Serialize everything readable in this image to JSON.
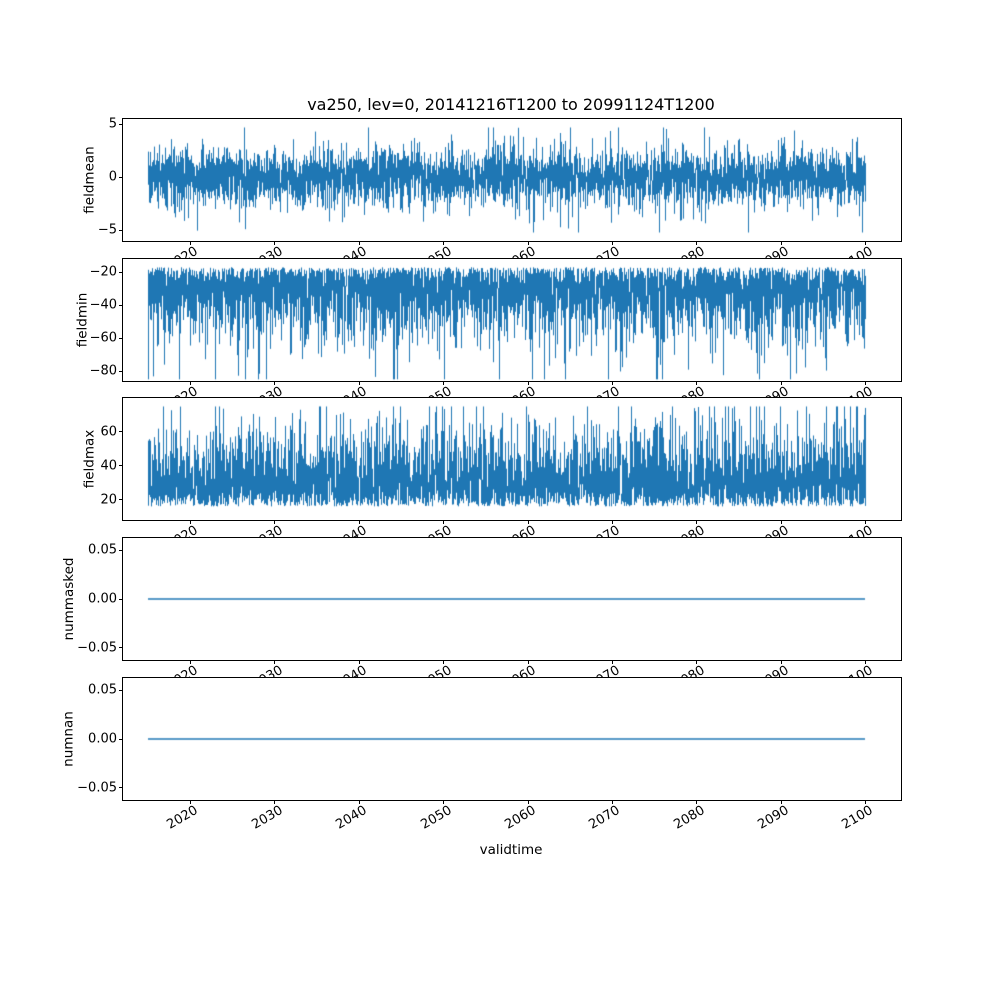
{
  "figure": {
    "title": "va250, lev=0, 20141216T1200 to 20991124T1200",
    "xlabel": "validtime",
    "background": "#ffffff",
    "line_color": "#1f77b4",
    "x_axis": {
      "xlim": [
        2012.0,
        2104.2
      ],
      "data_range": [
        2014.96,
        2099.9
      ],
      "tick_values": [
        2020,
        2030,
        2040,
        2050,
        2060,
        2070,
        2080,
        2090,
        2100
      ],
      "tick_labels": [
        "2020",
        "2030",
        "2040",
        "2050",
        "2060",
        "2070",
        "2080",
        "2090",
        "2100"
      ],
      "tick_rotation_deg": 30
    }
  },
  "chart_data": [
    {
      "type": "line",
      "ylabel": "fieldmean",
      "ylim": [
        -6.0,
        5.5
      ],
      "ytick_values": [
        5,
        0,
        -5
      ],
      "ytick_labels": [
        "5",
        "0",
        "−5"
      ],
      "profile": "sym",
      "typical_range": [
        -2.6,
        2.6
      ],
      "extremes": [
        -5.2,
        4.7
      ]
    },
    {
      "type": "line",
      "ylabel": "fieldmin",
      "ylim": [
        -86.0,
        -12.0
      ],
      "ytick_values": [
        -20,
        -40,
        -60,
        -80
      ],
      "ytick_labels": [
        "−20",
        "−40",
        "−60",
        "−80"
      ],
      "profile": "low",
      "typical_range": [
        -55,
        -17
      ],
      "extremes": [
        -85,
        -16
      ]
    },
    {
      "type": "line",
      "ylabel": "fieldmax",
      "ylim": [
        8.0,
        80.0
      ],
      "ytick_values": [
        60,
        40,
        20
      ],
      "ytick_labels": [
        "60",
        "40",
        "20"
      ],
      "profile": "high",
      "typical_range": [
        16,
        55
      ],
      "extremes": [
        15,
        75
      ]
    },
    {
      "type": "line",
      "ylabel": "nummasked",
      "ylim": [
        -0.0625,
        0.0625
      ],
      "ytick_values": [
        0.05,
        0,
        -0.05
      ],
      "ytick_labels": [
        "0.05",
        "0.00",
        "−0.05"
      ],
      "profile": "const",
      "value": 0.0
    },
    {
      "type": "line",
      "ylabel": "numnan",
      "ylim": [
        -0.0625,
        0.0625
      ],
      "ytick_values": [
        0.05,
        0,
        -0.05
      ],
      "ytick_labels": [
        "0.05",
        "0.00",
        "−0.05"
      ],
      "profile": "const",
      "value": 0.0
    }
  ]
}
